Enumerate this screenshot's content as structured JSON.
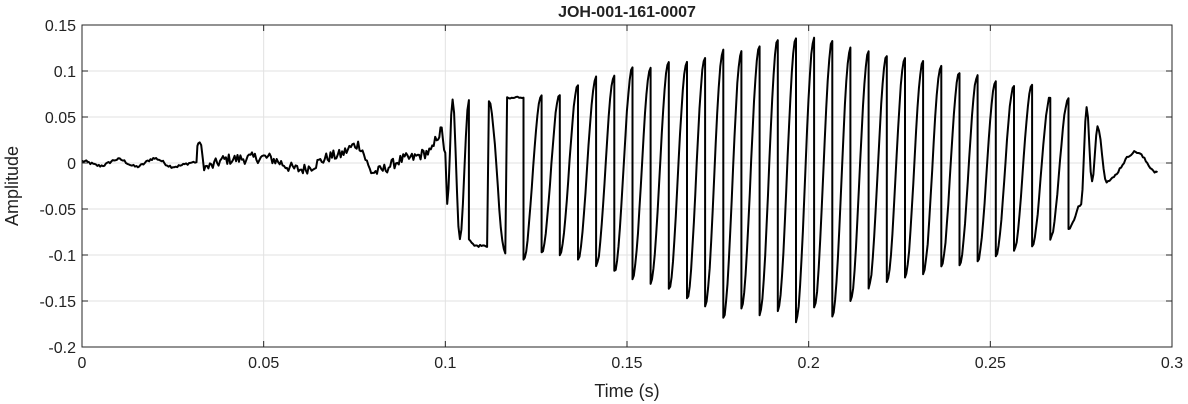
{
  "chart_data": {
    "type": "line",
    "title": "JOH-001-161-0007",
    "xlabel": "Time (s)",
    "ylabel": "Amplitude",
    "xlim": [
      0,
      0.3
    ],
    "ylim": [
      -0.2,
      0.15
    ],
    "x_ticks": [
      "0",
      "0.05",
      "0.1",
      "0.15",
      "0.2",
      "0.25",
      "0.3"
    ],
    "y_ticks": [
      "0.15",
      "0.1",
      "0.05",
      "0",
      "-0.05",
      "-0.1",
      "-0.15",
      "-0.2"
    ],
    "grid": true,
    "line_color": "#000000",
    "series": [
      {
        "name": "",
        "x": [
          0.0,
          0.005,
          0.01,
          0.015,
          0.02,
          0.025,
          0.0315,
          0.032,
          0.034,
          0.04,
          0.05,
          0.06,
          0.07,
          0.076,
          0.08,
          0.09,
          0.096,
          0.098,
          0.099,
          0.1,
          0.1005,
          0.102,
          0.104,
          0.1065,
          0.108,
          0.112,
          0.117,
          0.1215,
          0.1265,
          0.1315,
          0.1365,
          0.1415,
          0.1465,
          0.1515,
          0.1565,
          0.1615,
          0.1665,
          0.1715,
          0.1765,
          0.1815,
          0.1865,
          0.1915,
          0.1965,
          0.2015,
          0.2065,
          0.2115,
          0.2165,
          0.2215,
          0.2265,
          0.2315,
          0.2365,
          0.2415,
          0.2465,
          0.2515,
          0.2565,
          0.2615,
          0.2665,
          0.2715,
          0.275,
          0.2765,
          0.278,
          0.2795,
          0.282,
          0.29,
          0.296
        ],
        "y": [
          0.002,
          -0.003,
          0.004,
          -0.004,
          0.005,
          -0.004,
          0.001,
          0.025,
          -0.005,
          0.004,
          0.006,
          -0.007,
          0.008,
          0.02,
          -0.01,
          0.005,
          0.012,
          0.03,
          0.035,
          0.01,
          -0.045,
          0.068,
          -0.082,
          0.068,
          -0.09,
          0.067,
          0.07,
          0.072,
          0.073,
          0.075,
          0.084,
          0.093,
          0.095,
          0.103,
          0.103,
          0.11,
          0.11,
          0.115,
          0.123,
          0.122,
          0.128,
          0.134,
          0.135,
          0.135,
          0.133,
          0.125,
          0.12,
          0.117,
          0.114,
          0.111,
          0.106,
          0.098,
          0.095,
          0.088,
          0.084,
          0.085,
          0.072,
          0.07,
          -0.045,
          0.06,
          -0.02,
          0.04,
          -0.02,
          0.012,
          -0.01
        ],
        "troughs": [
          [
            0.1065,
            -0.082
          ],
          [
            0.1115,
            -0.09
          ],
          [
            0.1165,
            -0.098
          ],
          [
            0.1215,
            -0.105
          ],
          [
            0.1265,
            -0.098
          ],
          [
            0.1315,
            -0.1
          ],
          [
            0.1365,
            -0.104
          ],
          [
            0.1415,
            -0.112
          ],
          [
            0.1465,
            -0.118
          ],
          [
            0.1515,
            -0.125
          ],
          [
            0.1565,
            -0.13
          ],
          [
            0.1615,
            -0.138
          ],
          [
            0.1665,
            -0.148
          ],
          [
            0.1715,
            -0.155
          ],
          [
            0.1765,
            -0.168
          ],
          [
            0.1815,
            -0.157
          ],
          [
            0.1865,
            -0.165
          ],
          [
            0.1915,
            -0.16
          ],
          [
            0.1965,
            -0.172
          ],
          [
            0.2015,
            -0.158
          ],
          [
            0.2065,
            -0.166
          ],
          [
            0.2115,
            -0.15
          ],
          [
            0.2165,
            -0.135
          ],
          [
            0.2215,
            -0.13
          ],
          [
            0.2265,
            -0.125
          ],
          [
            0.2315,
            -0.12
          ],
          [
            0.2365,
            -0.112
          ],
          [
            0.2415,
            -0.11
          ],
          [
            0.2465,
            -0.106
          ],
          [
            0.2515,
            -0.1
          ],
          [
            0.2565,
            -0.095
          ],
          [
            0.2615,
            -0.09
          ],
          [
            0.2665,
            -0.082
          ],
          [
            0.2715,
            -0.072
          ]
        ]
      }
    ]
  }
}
